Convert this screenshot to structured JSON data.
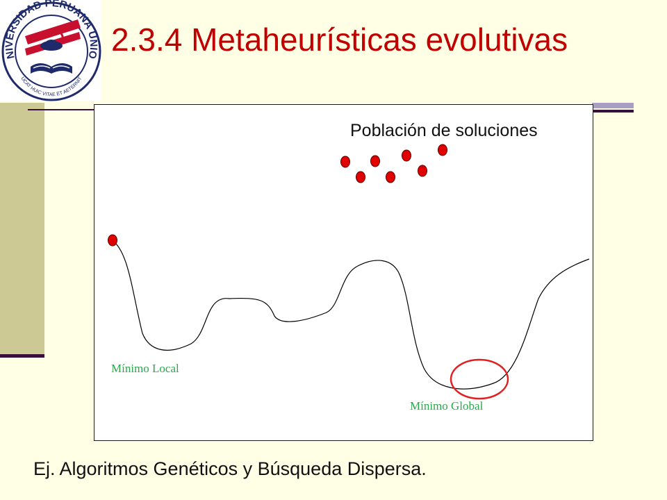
{
  "slide": {
    "title": "2.3.4 Metaheurísticas evolutivas",
    "caption": "Ej. Algoritmos Genéticos y Búsqueda Dispersa."
  },
  "logo": {
    "top_text": "UNIVERSIDAD PERUANA UNION",
    "motto": "EDUCAT HUIC VITAE ET AETERNITATI"
  },
  "diagram": {
    "population_label": "Población de soluciones",
    "local_min_label": "Mínimo Local",
    "global_min_label": "Mínimo Global",
    "population_size": 7,
    "colors": {
      "curve": "#000000",
      "solution_point": "#e00000",
      "highlight_circle": "#e02020",
      "label_green": "#2aa84a"
    }
  },
  "colors": {
    "title": "#c00000",
    "background": "#ffffe6",
    "left_bar": "#cdc994",
    "accent_line": "#3a0e3a",
    "right_deco": "#a99fc2",
    "logo_red": "#c8102e",
    "logo_navy": "#1f2a6b"
  }
}
